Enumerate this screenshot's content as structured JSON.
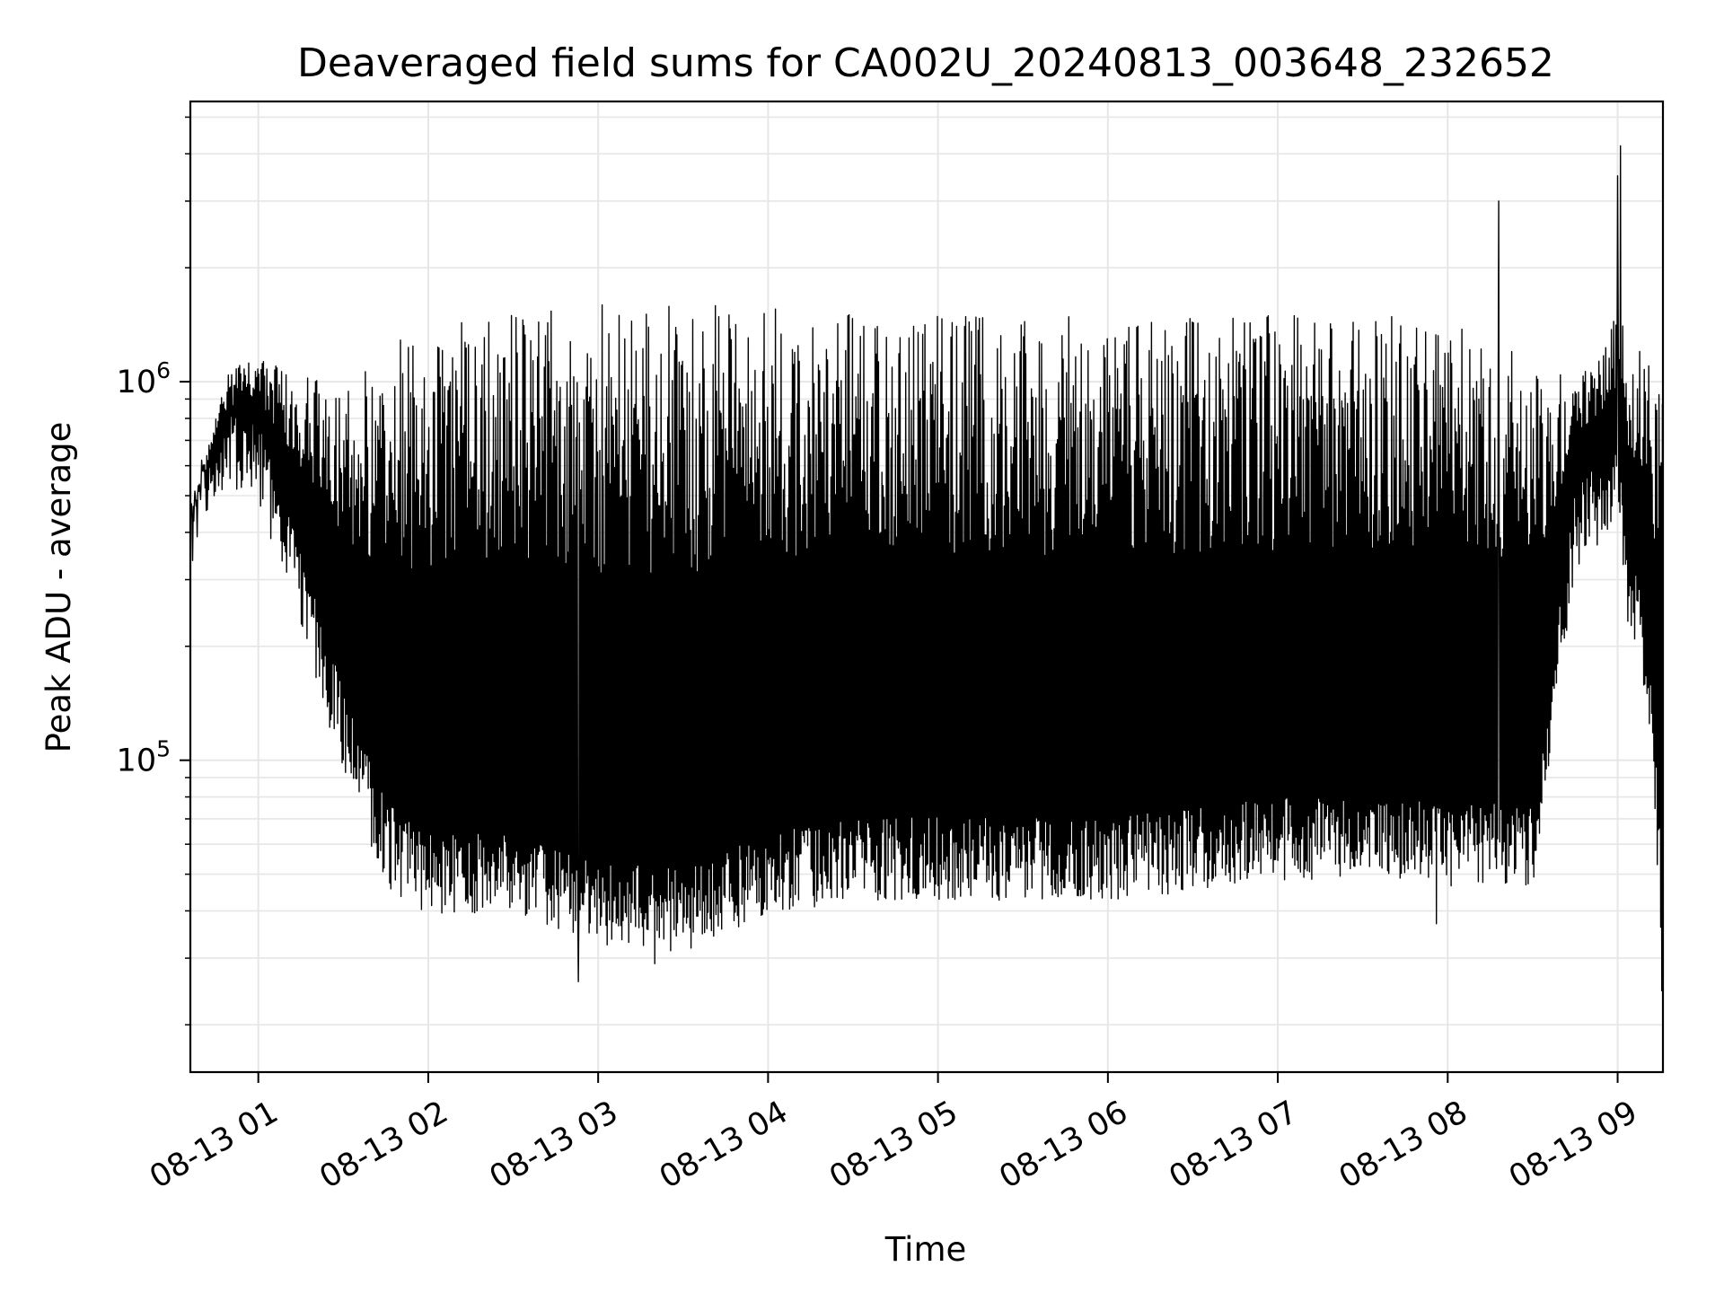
{
  "chart_data": {
    "type": "line",
    "title": "Deaveraged field sums for CA002U_20240813_003648_232652",
    "xlabel": "Time",
    "ylabel": "Peak ADU - average",
    "yscale": "log",
    "grid": true,
    "line_color": "#000000",
    "grid_color": "#e6e6e6",
    "x_range": [
      "08-13 00:36",
      "08-13 09:16"
    ],
    "ylim": [
      15000,
      5500000
    ],
    "x_ticks": [
      {
        "hour": 1,
        "label": "08-13 01"
      },
      {
        "hour": 2,
        "label": "08-13 02"
      },
      {
        "hour": 3,
        "label": "08-13 03"
      },
      {
        "hour": 4,
        "label": "08-13 04"
      },
      {
        "hour": 5,
        "label": "08-13 05"
      },
      {
        "hour": 6,
        "label": "08-13 06"
      },
      {
        "hour": 7,
        "label": "08-13 07"
      },
      {
        "hour": 8,
        "label": "08-13 08"
      },
      {
        "hour": 9,
        "label": "08-13 09"
      }
    ],
    "y_ticks": [
      {
        "value": 100000,
        "base": "10",
        "exp": "5"
      },
      {
        "value": 1000000,
        "base": "10",
        "exp": "6"
      }
    ],
    "series": [
      {
        "baseline_envelope": {
          "time": [
            "08-13 00:36",
            "08-13 00:45",
            "08-13 01:00",
            "08-13 01:15",
            "08-13 01:30",
            "08-13 01:45",
            "08-13 02:00",
            "08-13 02:30",
            "08-13 03:00",
            "08-13 03:30",
            "08-13 04:00",
            "08-13 04:30",
            "08-13 05:00",
            "08-13 05:30",
            "08-13 06:00",
            "08-13 06:30",
            "08-13 07:00",
            "08-13 07:30",
            "08-13 08:00",
            "08-13 08:30",
            "08-13 08:45",
            "08-13 09:00",
            "08-13 09:03",
            "08-13 09:08",
            "08-13 09:12",
            "08-13 09:15",
            "08-13 09:16"
          ],
          "value": [
            380000,
            650000,
            620000,
            280000,
            120000,
            60000,
            50000,
            50000,
            42000,
            40000,
            50000,
            55000,
            55000,
            55000,
            55000,
            58000,
            62000,
            62000,
            60000,
            60000,
            400000,
            550000,
            300000,
            230000,
            120000,
            50000,
            20000
          ]
        },
        "peak_envelope": {
          "time": [
            "08-13 00:36",
            "08-13 00:50",
            "08-13 01:00",
            "08-13 01:30",
            "08-13 02:00",
            "08-13 03:00",
            "08-13 04:00",
            "08-13 05:00",
            "08-13 06:00",
            "08-13 07:00",
            "08-13 08:00",
            "08-13 08:30",
            "08-13 08:45",
            "08-13 09:00",
            "08-13 09:16"
          ],
          "value": [
            450000,
            1100000,
            1150000,
            950000,
            1500000,
            1600000,
            1600000,
            1500000,
            1500000,
            1500000,
            1500000,
            1200000,
            1000000,
            1500000,
            1000000
          ]
        },
        "notable_peaks": [
          {
            "time": "08-13 08:18",
            "value": 3000000
          },
          {
            "time": "08-13 09:00",
            "value": 3500000
          },
          {
            "time": "08-13 09:01",
            "value": 4200000
          }
        ],
        "notable_dips": [
          {
            "time": "08-13 02:53",
            "value": 26000
          },
          {
            "time": "08-13 03:20",
            "value": 29000
          },
          {
            "time": "08-13 07:56",
            "value": 37000
          }
        ]
      }
    ]
  }
}
